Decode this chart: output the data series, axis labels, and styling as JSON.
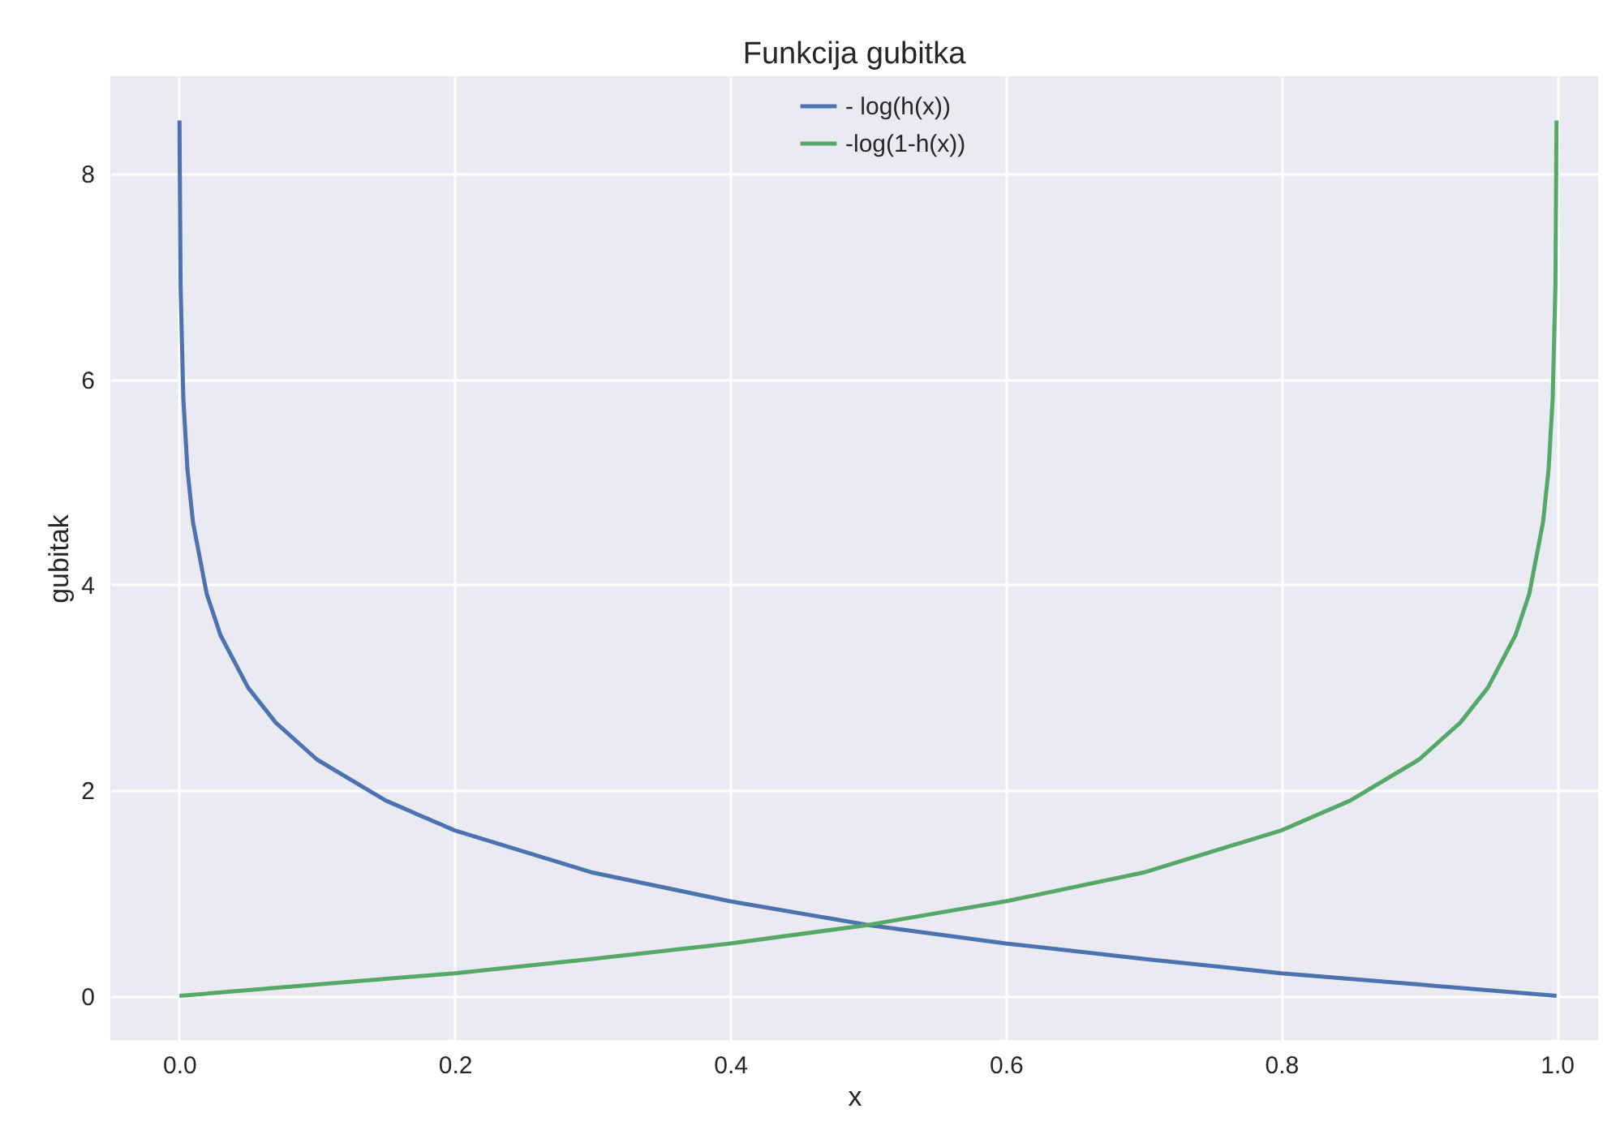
{
  "chart_data": {
    "type": "line",
    "title": "Funkcija gubitka",
    "xlabel": "x",
    "ylabel": "gubitak",
    "series": [
      {
        "name": "- log(h(x))",
        "color": "#4c72b0",
        "x": [
          0.0002,
          0.001,
          0.003,
          0.006,
          0.01,
          0.02,
          0.03,
          0.05,
          0.07,
          0.1,
          0.15,
          0.2,
          0.3,
          0.4,
          0.5,
          0.6,
          0.7,
          0.8,
          0.9,
          0.9998
        ],
        "values": [
          8.52,
          6.91,
          5.81,
          5.12,
          4.61,
          3.91,
          3.51,
          3.0,
          2.66,
          2.3,
          1.9,
          1.61,
          1.2,
          0.92,
          0.69,
          0.51,
          0.36,
          0.22,
          0.11,
          0.0
        ]
      },
      {
        "name": "-log(1-h(x))",
        "color": "#55a868",
        "x": [
          0.0002,
          0.1,
          0.2,
          0.3,
          0.4,
          0.5,
          0.6,
          0.7,
          0.8,
          0.85,
          0.9,
          0.93,
          0.95,
          0.97,
          0.98,
          0.99,
          0.994,
          0.997,
          0.999,
          0.9998
        ],
        "values": [
          0.0,
          0.11,
          0.22,
          0.36,
          0.51,
          0.69,
          0.92,
          1.2,
          1.61,
          1.9,
          2.3,
          2.66,
          3.0,
          3.51,
          3.91,
          4.61,
          5.12,
          5.81,
          6.91,
          8.52
        ]
      }
    ],
    "xlim": [
      -0.05,
      1.03
    ],
    "xticks": [
      {
        "value": 0,
        "label": "0.0"
      },
      0.2,
      0.4,
      0.6,
      0.8,
      {
        "value": 1,
        "label": "1.0"
      }
    ],
    "ylim": [
      -0.43,
      8.95
    ],
    "yticks": [
      0,
      2,
      4,
      6,
      8
    ],
    "grid": true,
    "legend": "top",
    "line_style": "solid",
    "marker": "none"
  }
}
